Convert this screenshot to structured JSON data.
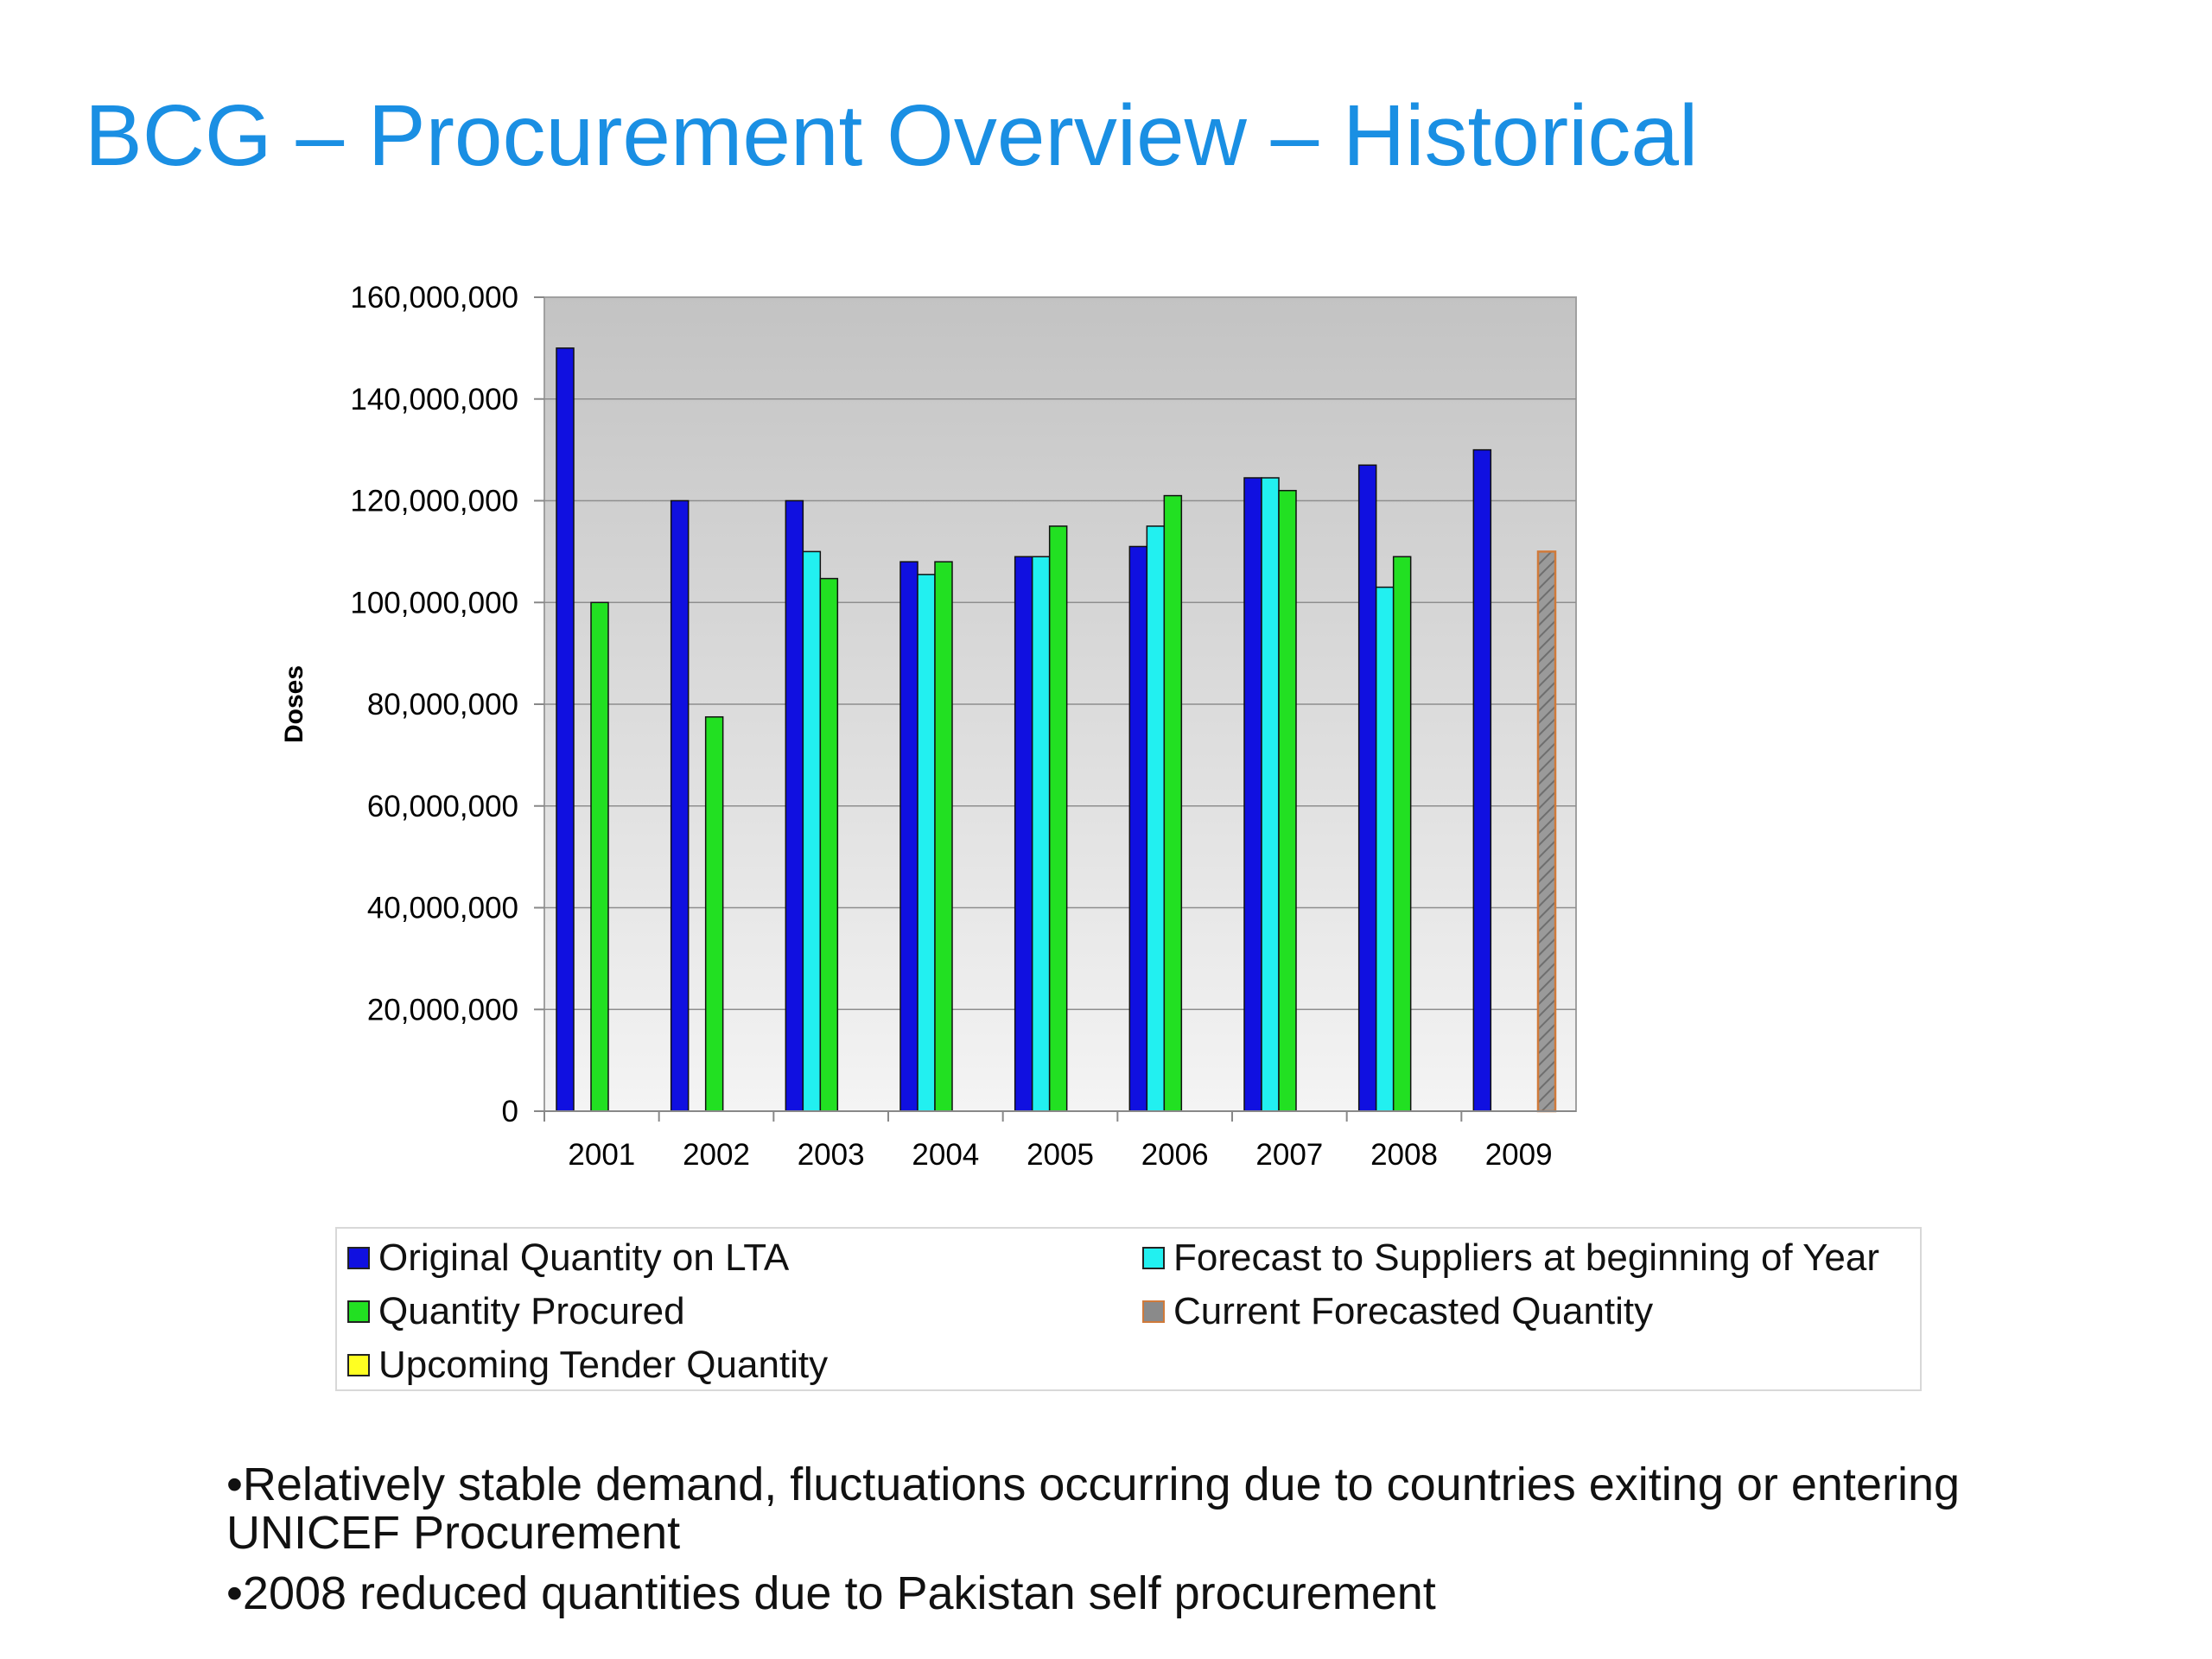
{
  "title": "BCG – Procurement Overview – Historical",
  "chart_data": {
    "type": "bar",
    "title": "",
    "xlabel": "",
    "ylabel": "Doses",
    "ylim": [
      0,
      160000000
    ],
    "yticks": [
      "0",
      "20,000,000",
      "40,000,000",
      "60,000,000",
      "80,000,000",
      "100,000,000",
      "120,000,000",
      "140,000,000",
      "160,000,000"
    ],
    "categories": [
      "2001",
      "2002",
      "2003",
      "2004",
      "2005",
      "2006",
      "2007",
      "2008",
      "2009"
    ],
    "grid": true,
    "legend_position": "bottom",
    "series": [
      {
        "name": "Original Quantity on LTA",
        "color": "#1010e0",
        "values": [
          150000000,
          120000000,
          120000000,
          108000000,
          109000000,
          111000000,
          124500000,
          127000000,
          130000000
        ]
      },
      {
        "name": "Forecast to Suppliers at beginning of Year",
        "color": "#22f0f0",
        "values": [
          null,
          null,
          110000000,
          105500000,
          109000000,
          115000000,
          124500000,
          103000000,
          null
        ]
      },
      {
        "name": "Quantity Procured",
        "color": "#22e022",
        "values": [
          100000000,
          77500000,
          104700000,
          108000000,
          115000000,
          121000000,
          122000000,
          109000000,
          null
        ]
      },
      {
        "name": "Current Forecasted Quantity",
        "color": "#8a8a8a",
        "values": [
          null,
          null,
          null,
          null,
          null,
          null,
          null,
          null,
          110000000
        ]
      },
      {
        "name": "Upcoming Tender Quantity",
        "color": "#ffff22",
        "values": [
          null,
          null,
          null,
          null,
          null,
          null,
          null,
          null,
          null
        ]
      }
    ]
  },
  "legend": [
    {
      "label": "Original Quantity on LTA",
      "color": "#1010e0"
    },
    {
      "label": "Forecast to Suppliers at beginning of Year",
      "color": "#22f0f0"
    },
    {
      "label": "Quantity Procured",
      "color": "#22e022"
    },
    {
      "label": "Current Forecasted Quantity",
      "color": "#8a8a8a",
      "border": "#d07a3a"
    },
    {
      "label": "Upcoming Tender Quantity",
      "color": "#ffff22"
    }
  ],
  "bullets": [
    "•Relatively stable demand, fluctuations occurring due to countries exiting or entering UNICEF Procurement",
    "•2008 reduced quantities due to Pakistan self procurement"
  ]
}
